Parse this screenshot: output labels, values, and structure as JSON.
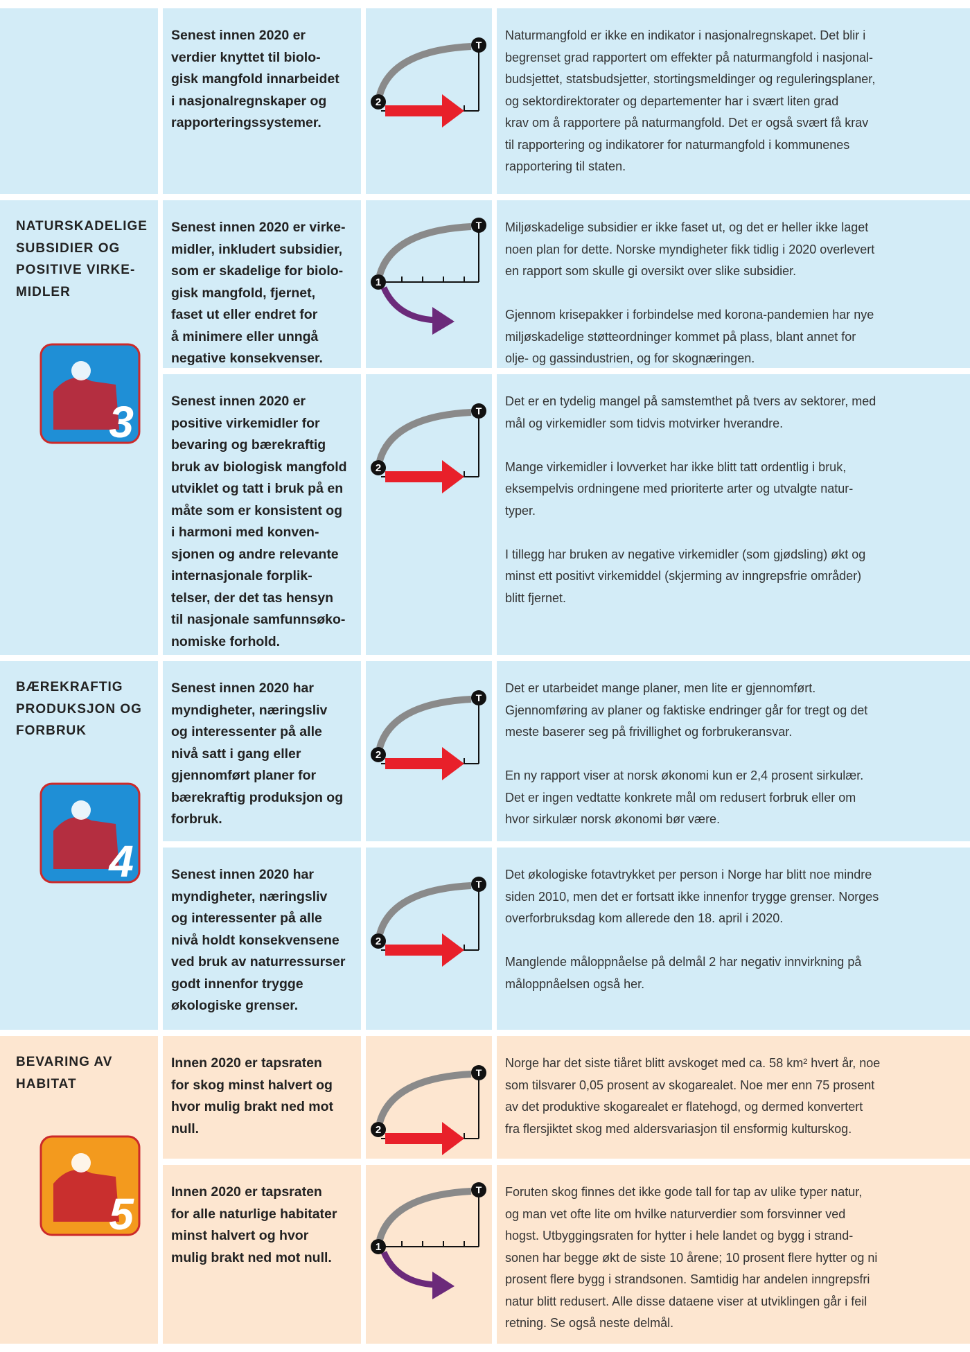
{
  "groups": [
    {
      "color": "#d3ecf7",
      "rows": [
        {
          "level": "2",
          "end": "T",
          "target": [
            "Senest innen 2020 er",
            "verdier knyttet til biolo-",
            "gisk mangfold innarbeidet",
            "i nasjonalregnskaper og",
            "rapporteringssystemer."
          ],
          "text": [
            [
              "Naturmangfold er ikke en indikator i nasjonalregnskapet. Det blir i",
              "begrenset grad rapportert om effekter på naturmangfold i nasjonal-",
              "budsjettet, statsbudsjetter, stortingsmeldinger og reguleringsplaner,",
              "og sektordirektorater og departementer har i svært liten grad",
              "krav om å rapportere på naturmangfold. Det er også svært få krav",
              "til rapportering og indikatorer for naturmangfold i kommunenes",
              "rapportering til staten."
            ]
          ]
        }
      ]
    },
    {
      "color": "#d3ecf7",
      "title": [
        "NATURSKADELIGE",
        "SUBSIDIER OG",
        "POSITIVE VIRKE-",
        "MIDLER"
      ],
      "icon": "3",
      "icon_color": "#1f8fd6",
      "rows": [
        {
          "level": "1",
          "end": "T",
          "target": [
            "Senest innen 2020 er virke-",
            "midler, inkludert subsidier,",
            "som er skadelige for biolo-",
            "gisk mangfold, fjernet,",
            "faset ut eller endret for",
            "å minimere eller unngå",
            "negative konsekvenser."
          ],
          "text": [
            [
              "Miljøskadelige subsidier er ikke faset ut, og det er heller ikke laget",
              "noen plan for dette. Norske myndigheter fikk tidlig i 2020 overlevert",
              "en rapport som skulle gi oversikt over slike subsidier."
            ],
            [
              "Gjennom krisepakker i forbindelse med korona-pandemien har nye",
              "miljøskadelige støtteordninger kommet på plass, blant annet for",
              "olje- og gassindustrien, og for skognæringen."
            ]
          ]
        },
        {
          "level": "2",
          "end": "T",
          "target": [
            "Senest innen 2020 er",
            "positive virkemidler for",
            "bevaring og bærekraftig",
            "bruk av biologisk mangfold",
            "utviklet og tatt i bruk på en",
            "måte som er konsistent og",
            "i harmoni med konven-",
            "sjonen og andre relevante",
            "internasjonale forplik-",
            "telser, der det tas hensyn",
            "til nasjonale samfunnsøko-",
            "nomiske forhold."
          ],
          "text": [
            [
              "Det er en tydelig mangel på samstemthet på tvers av sektorer, med",
              "mål og virkemidler som tidvis motvirker hverandre."
            ],
            [
              "Mange virkemidler i lovverket har ikke blitt tatt ordentlig i bruk,",
              "eksempelvis ordningene med prioriterte arter og utvalgte natur-",
              "typer."
            ],
            [
              "I tillegg har bruken av negative virkemidler (som gjødsling) økt og",
              "minst ett positivt virkemiddel (skjerming av inngrepsfrie områder)",
              "blitt fjernet."
            ]
          ]
        }
      ]
    },
    {
      "color": "#d3ecf7",
      "title": [
        "BÆREKRAFTIG",
        "PRODUKSJON OG",
        "FORBRUK"
      ],
      "icon": "4",
      "icon_color": "#1f8fd6",
      "rows": [
        {
          "level": "2",
          "end": "T",
          "target": [
            "Senest innen 2020 har",
            "myndigheter, næringsliv",
            "og interessenter på alle",
            "nivå satt i gang eller",
            "gjennomført planer for",
            "bærekraftig produksjon og",
            "forbruk."
          ],
          "text": [
            [
              "Det er utarbeidet mange planer, men lite er gjennomført.",
              "Gjennomføring av planer og faktiske endringer går for tregt og det",
              "meste baserer seg på frivillighet og forbrukeransvar."
            ],
            [
              "En ny rapport viser at norsk økonomi kun er 2,4 prosent sirkulær.",
              "Det er ingen vedtatte konkrete mål om redusert forbruk eller om",
              "hvor sirkulær norsk økonomi bør være."
            ]
          ]
        },
        {
          "level": "2",
          "end": "T",
          "target": [
            "Senest innen 2020 har",
            "myndigheter, næringsliv",
            "og interessenter på alle",
            "nivå holdt konsekvensene",
            "ved bruk av naturressurser",
            "godt innenfor trygge",
            "økologiske grenser."
          ],
          "text": [
            [
              "Det økologiske fotavtrykket per person i Norge har blitt noe mindre",
              "siden 2010, men det er fortsatt ikke innenfor trygge grenser. Norges",
              "overforbruksdag kom allerede den 18. april i 2020."
            ],
            [
              "Manglende måloppnåelse på delmål 2 har negativ innvirkning på",
              "måloppnåelsen også her."
            ]
          ]
        }
      ]
    },
    {
      "color": "#fde6d0",
      "title": [
        "BEVARING AV",
        "HABITAT"
      ],
      "icon": "5",
      "icon_color": "#f39a1e",
      "rows": [
        {
          "level": "2",
          "end": "T",
          "target": [
            "Innen 2020 er tapsraten",
            "for skog minst halvert og",
            "hvor mulig brakt ned mot",
            "null."
          ],
          "text": [
            [
              "Norge har det siste tiåret blitt avskoget med ca. 58 km² hvert år, noe",
              "som tilsvarer 0,05 prosent av skogarealet. Noe mer enn 75 prosent",
              "av det produktive skogarealet er flatehogd, og dermed konvertert",
              "fra flersjiktet skog med aldersvariasjon til ensformig kulturskog."
            ]
          ]
        },
        {
          "level": "1",
          "end": "T",
          "target": [
            "Innen 2020 er tapsraten",
            "for alle naturlige habitater",
            "minst halvert og hvor",
            "mulig brakt ned mot null."
          ],
          "text": [
            [
              "Foruten skog finnes det ikke gode tall for tap av ulike typer natur,",
              "og man vet ofte lite om hvilke naturverdier som forsvinner ved",
              "hogst. Utbyggingsraten for hytter i hele landet og bygg i strand-",
              "sonen har begge økt de siste 10 årene; 10 prosent flere hytter og ni",
              "prosent flere bygg i strandsonen. Samtidig har andelen inngrepsfri",
              "natur blitt redusert. Alle disse dataene viser at utviklingen går i feil",
              "retning. Se også neste delmål."
            ]
          ]
        }
      ]
    }
  ]
}
